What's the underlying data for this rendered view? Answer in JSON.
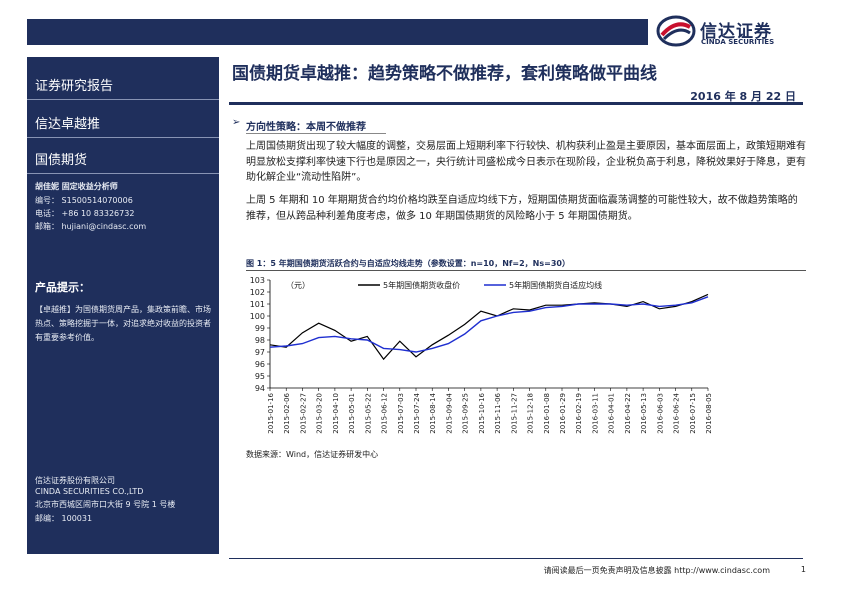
{
  "header": {
    "logo_cn": "信达证券",
    "logo_en": "CINDA SECURITIES"
  },
  "sidebar": {
    "report_type": "证券研究报告",
    "series": "信达卓越推",
    "category": "国债期货",
    "analyst": "胡佳妮  固定收益分析师",
    "reg_no": "编号： S1500514070006",
    "phone": "电话： +86 10 83326732",
    "email": "邮箱： hujiani@cindasc.com",
    "tip_title": "产品提示：",
    "tip_text": "【卓越推】为国债期货周产品，集政策前瞻、市场热点、策略挖掘于一体，对追求绝对收益的投资者有重要参考价值。",
    "company_cn": "信达证券股份有限公司",
    "company_en": "CINDA SECURITIES CO.,LTD",
    "address": "北京市西城区闹市口大街 9 号院 1 号楼",
    "postcode": "邮编： 100031"
  },
  "report": {
    "title": "国债期货卓越推：趋势策略不做推荐，套利策略做平曲线",
    "date": "2016 年 8 月 22 日",
    "section_arrow": "➢",
    "section_title": "方向性策略：本周不做推荐",
    "para1": "上周国债期货出现了较大幅度的调整，交易层面上短期利率下行较快、机构获利止盈是主要原因，基本面层面上，政策短期难有明显放松支撑利率快速下行也是原因之一，央行统计司盛松成今日表示在现阶段，企业税负高于利息，降税效果好于降息，更有助化解企业“流动性陷阱”。",
    "para2": "上周 5 年期和 10 年期期货合约均价格均跌至自适应均线下方，短期国债期货面临震荡调整的可能性较大，故不做趋势策略的推荐，但从跨品种利差角度考虑，做多 10 年期国债期货的风险略小于 5 年期国债期货。"
  },
  "figure": {
    "title": "图 1：5 年期国债期货活跃合约与自适应均线走势（参数设置：n=10，Nf=2，Ns=30）",
    "source": "数据来源：Wind，信达证券研发中心"
  },
  "footer": {
    "disclaimer": "请阅读最后一页免责声明及信息披露 http://www.cindasc.com",
    "page": "1"
  },
  "chart_data": {
    "type": "line",
    "ylabel": "（元）",
    "ylim": [
      94,
      103
    ],
    "yticks": [
      94,
      95,
      96,
      97,
      98,
      99,
      100,
      101,
      102,
      103
    ],
    "grid": false,
    "legend_position": "top",
    "x": [
      "2015-01-16",
      "2015-02-06",
      "2015-02-27",
      "2015-03-20",
      "2015-04-10",
      "2015-05-01",
      "2015-05-22",
      "2015-06-12",
      "2015-07-03",
      "2015-07-24",
      "2015-08-14",
      "2015-09-04",
      "2015-09-25",
      "2015-10-16",
      "2015-11-06",
      "2015-11-27",
      "2015-12-18",
      "2016-01-08",
      "2016-01-29",
      "2016-02-19",
      "2016-03-11",
      "2016-04-01",
      "2016-04-22",
      "2016-05-13",
      "2016-06-03",
      "2016-06-24",
      "2016-07-15",
      "2016-08-05"
    ],
    "series": [
      {
        "name": "5年期国债期货收盘价",
        "color": "#000000",
        "values": [
          97.6,
          97.4,
          98.6,
          99.4,
          98.8,
          97.9,
          98.3,
          96.4,
          97.9,
          96.6,
          97.6,
          98.4,
          99.3,
          100.4,
          100.0,
          100.6,
          100.5,
          100.9,
          100.9,
          101.0,
          101.1,
          101.0,
          100.8,
          101.2,
          100.6,
          100.8,
          101.2,
          101.8
        ]
      },
      {
        "name": "5年期国债期货自适应均线",
        "color": "#1f2fd0",
        "values": [
          97.4,
          97.5,
          97.7,
          98.2,
          98.3,
          98.1,
          98.0,
          97.3,
          97.2,
          97.0,
          97.3,
          97.7,
          98.5,
          99.6,
          100.0,
          100.3,
          100.4,
          100.7,
          100.8,
          101.0,
          101.0,
          101.0,
          100.9,
          101.0,
          100.8,
          100.9,
          101.1,
          101.6
        ]
      }
    ]
  }
}
